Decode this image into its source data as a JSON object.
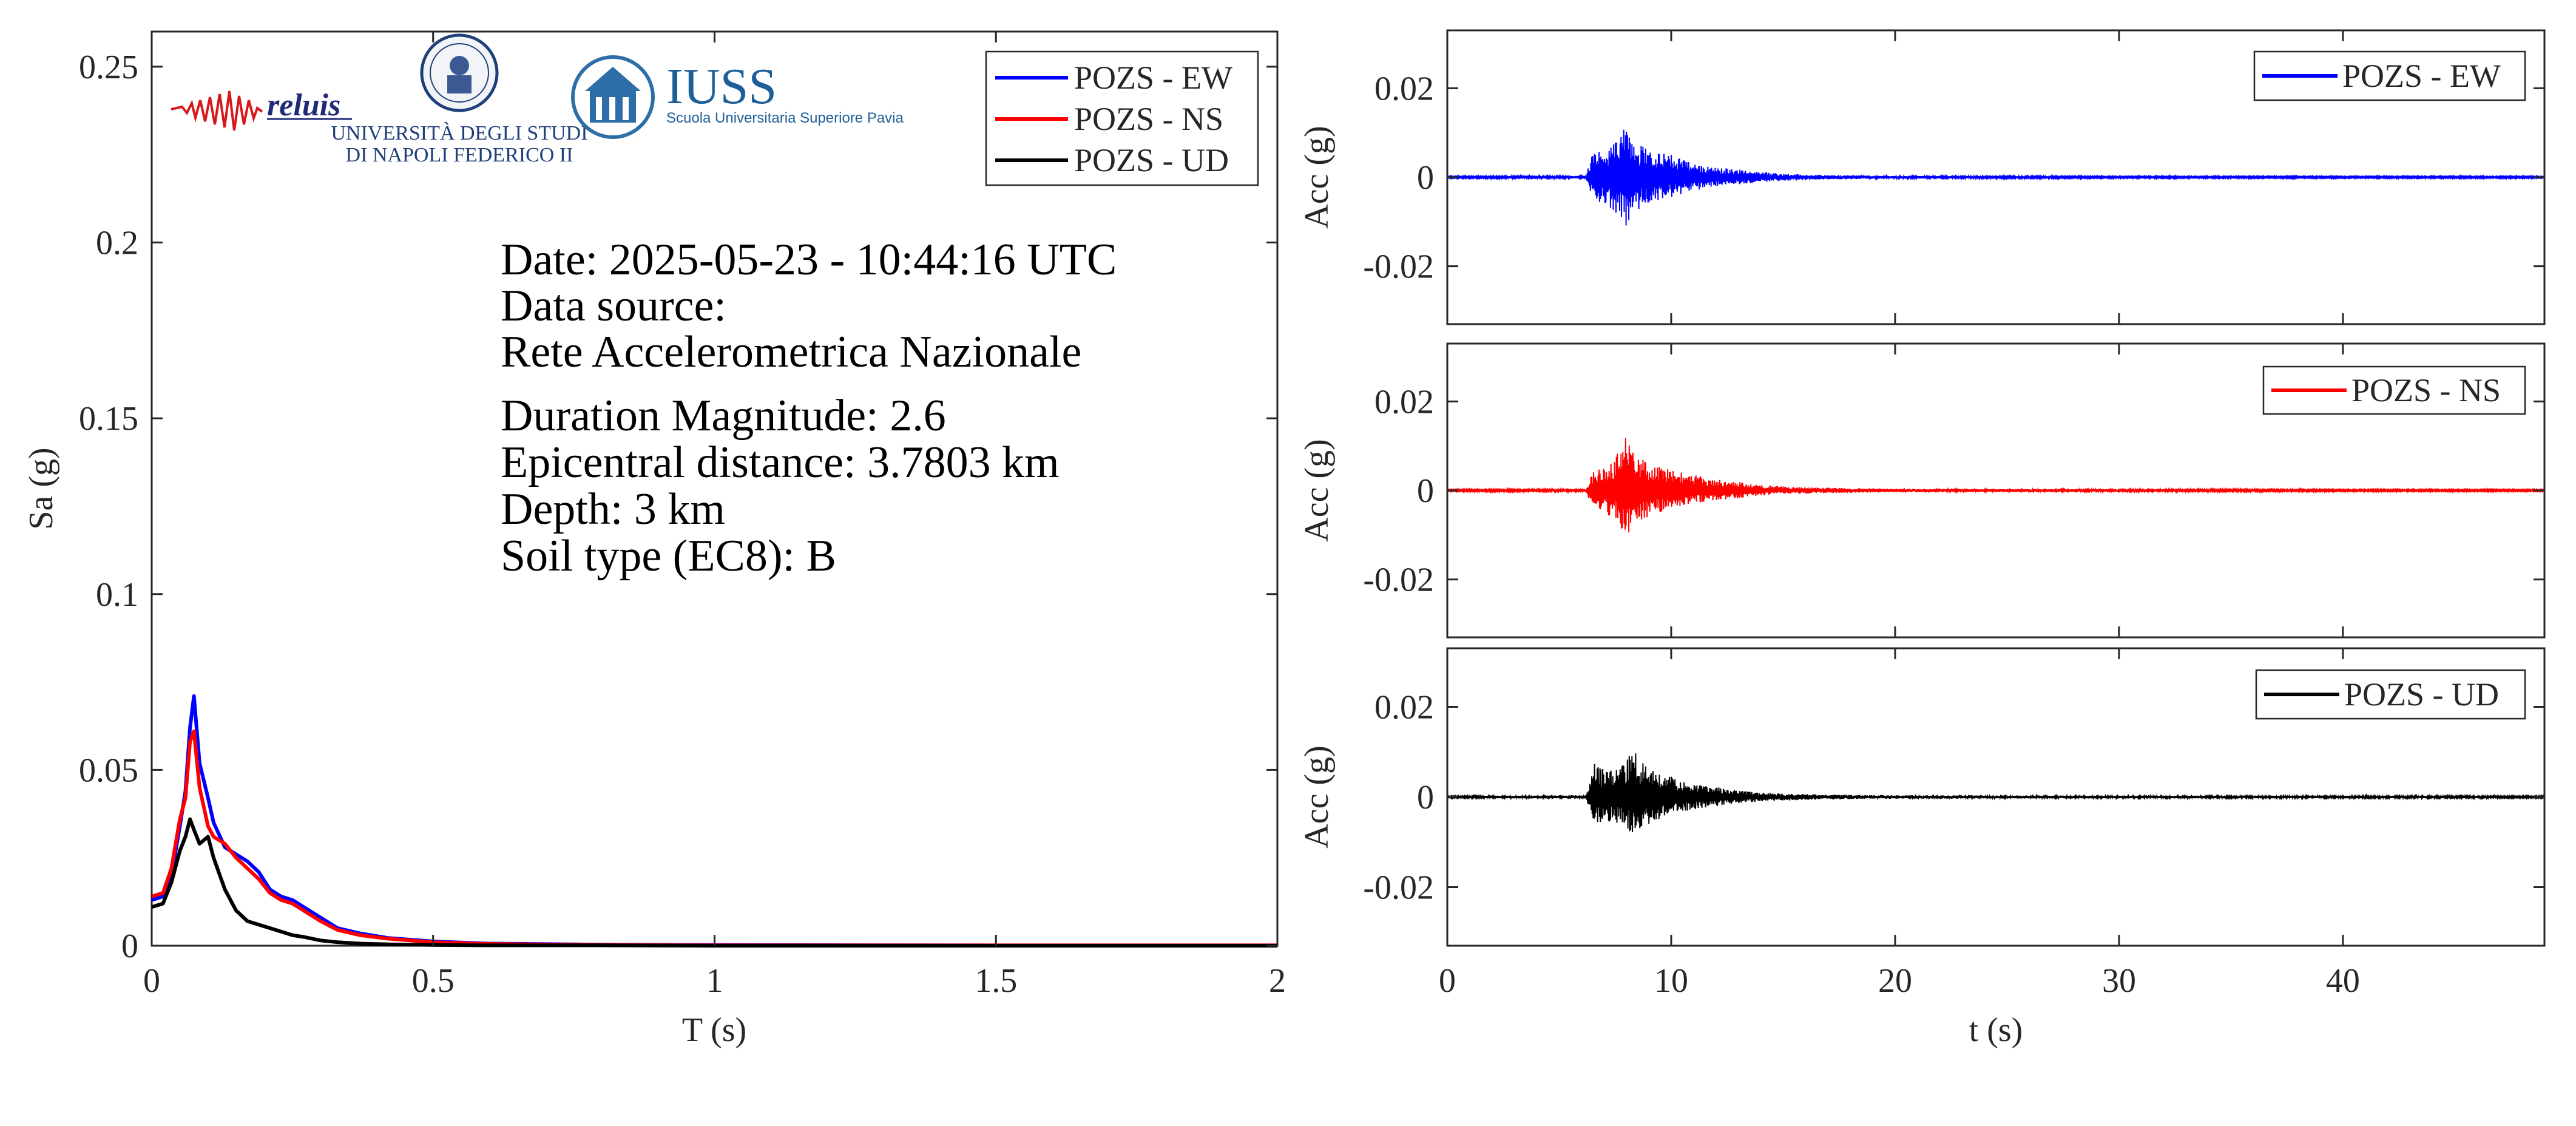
{
  "logos": {
    "reluis": "reluis",
    "unina_line1": "UNIVERSITÀ DEGLI STUDI",
    "unina_line2": "DI NAPOLI FEDERICO II",
    "iuss_title": "IUSS",
    "iuss_subtitle": "Scuola Universitaria Superiore Pavia"
  },
  "info": {
    "date": "Date: 2025-05-23 - 10:44:16 UTC",
    "source_label": "Data source:",
    "source_value": "Rete Accelerometrica Nazionale",
    "magnitude": "Duration Magnitude: 2.6",
    "distance": "Epicentral distance: 3.7803 km",
    "depth": "Depth: 3 km",
    "soil": "Soil type (EC8): B"
  },
  "colors": {
    "ew": "#0000ff",
    "ns": "#ff0000",
    "ud": "#000000",
    "axis": "#262626"
  },
  "chart_data": [
    {
      "type": "line",
      "xlabel": "T (s)",
      "ylabel": "Sa (g)",
      "xlim": [
        0,
        2
      ],
      "ylim": [
        0,
        0.26
      ],
      "xticks": [
        0,
        0.5,
        1,
        1.5,
        2
      ],
      "xtick_labels": [
        "0",
        "0.5",
        "1",
        "1.5",
        "2"
      ],
      "yticks": [
        0,
        0.05,
        0.1,
        0.15,
        0.2,
        0.25
      ],
      "ytick_labels": [
        "0",
        "0.05",
        "0.1",
        "0.15",
        "0.2",
        "0.25"
      ],
      "legend": "top-right",
      "series": [
        {
          "name": "POZS - EW",
          "color": "#0000ff",
          "x": [
            0,
            0.02,
            0.035,
            0.05,
            0.06,
            0.068,
            0.075,
            0.085,
            0.1,
            0.11,
            0.13,
            0.15,
            0.17,
            0.19,
            0.21,
            0.23,
            0.25,
            0.27,
            0.3,
            0.33,
            0.37,
            0.42,
            0.5,
            0.6,
            0.8,
            1.0,
            1.5,
            2.0
          ],
          "y": [
            0.013,
            0.014,
            0.02,
            0.034,
            0.044,
            0.062,
            0.071,
            0.052,
            0.042,
            0.035,
            0.028,
            0.026,
            0.024,
            0.021,
            0.016,
            0.014,
            0.013,
            0.011,
            0.008,
            0.005,
            0.0035,
            0.0022,
            0.0012,
            0.0006,
            0.0003,
            0.0002,
            0.0001,
            0.0001
          ]
        },
        {
          "name": "POZS - NS",
          "color": "#ff0000",
          "x": [
            0,
            0.02,
            0.035,
            0.05,
            0.06,
            0.068,
            0.075,
            0.085,
            0.1,
            0.11,
            0.13,
            0.15,
            0.17,
            0.19,
            0.21,
            0.23,
            0.25,
            0.27,
            0.3,
            0.33,
            0.37,
            0.42,
            0.5,
            0.6,
            0.8,
            1.0,
            1.5,
            2.0
          ],
          "y": [
            0.014,
            0.015,
            0.022,
            0.036,
            0.042,
            0.058,
            0.061,
            0.045,
            0.034,
            0.031,
            0.029,
            0.025,
            0.022,
            0.019,
            0.015,
            0.013,
            0.012,
            0.01,
            0.007,
            0.0045,
            0.003,
            0.002,
            0.001,
            0.0005,
            0.0002,
            0.0001,
            0.0001,
            0.0001
          ]
        },
        {
          "name": "POZS - UD",
          "color": "#000000",
          "x": [
            0,
            0.02,
            0.035,
            0.05,
            0.06,
            0.068,
            0.075,
            0.085,
            0.1,
            0.11,
            0.13,
            0.15,
            0.17,
            0.19,
            0.21,
            0.23,
            0.25,
            0.27,
            0.3,
            0.33,
            0.37,
            0.42,
            0.5,
            0.6,
            0.8,
            1.0,
            1.5,
            2.0
          ],
          "y": [
            0.011,
            0.012,
            0.018,
            0.027,
            0.031,
            0.036,
            0.033,
            0.029,
            0.031,
            0.025,
            0.016,
            0.01,
            0.007,
            0.006,
            0.005,
            0.004,
            0.003,
            0.0025,
            0.0015,
            0.001,
            0.0006,
            0.0004,
            0.0002,
            0.0001,
            0.0001,
            0.0,
            0.0,
            0.0
          ]
        }
      ]
    },
    {
      "type": "line",
      "xlabel": "",
      "ylabel": "Acc (g)",
      "xlim": [
        0,
        49
      ],
      "ylim": [
        -0.033,
        0.033
      ],
      "xticks": [
        0,
        10,
        20,
        30,
        40
      ],
      "yticks": [
        -0.02,
        0,
        0.02
      ],
      "ytick_labels": [
        "-0.02",
        "0",
        "0.02"
      ],
      "legend": "top-right",
      "series": [
        {
          "name": "POZS - EW",
          "color": "#0000ff",
          "x": [
            0,
            6.2,
            6.5,
            7.0,
            7.5,
            7.8,
            8.0,
            8.2,
            8.5,
            9.0,
            9.5,
            10.0,
            11.0,
            12.0,
            13.0,
            14.0,
            15.0,
            17.0,
            20.0,
            30.0,
            40.0,
            49.0
          ],
          "y": [
            0.0002,
            0.0003,
            0.006,
            0.0065,
            0.008,
            0.0105,
            0.0125,
            0.009,
            0.0075,
            0.007,
            0.0055,
            0.005,
            0.0032,
            0.0022,
            0.0018,
            0.0012,
            0.0008,
            0.0005,
            0.0003,
            0.0002,
            0.0002,
            0.0002
          ],
          "y_min": [
            -0.0002,
            -0.0003,
            -0.0055,
            -0.006,
            -0.0085,
            -0.0095,
            -0.0115,
            -0.0095,
            -0.0075,
            -0.0065,
            -0.005,
            -0.0045,
            -0.003,
            -0.002,
            -0.0016,
            -0.0011,
            -0.0008,
            -0.0005,
            -0.0003,
            -0.0002,
            -0.0002,
            -0.0002
          ]
        }
      ]
    },
    {
      "type": "line",
      "xlabel": "",
      "ylabel": "Acc (g)",
      "xlim": [
        0,
        49
      ],
      "ylim": [
        -0.033,
        0.033
      ],
      "xticks": [
        0,
        10,
        20,
        30,
        40
      ],
      "yticks": [
        -0.02,
        0,
        0.02
      ],
      "ytick_labels": [
        "-0.02",
        "0",
        "0.02"
      ],
      "legend": "top-right",
      "series": [
        {
          "name": "POZS - NS",
          "color": "#ff0000",
          "x": [
            0,
            6.2,
            6.5,
            7.0,
            7.5,
            7.8,
            8.0,
            8.2,
            8.5,
            9.0,
            9.5,
            10.0,
            11.0,
            12.0,
            13.0,
            14.0,
            15.0,
            17.0,
            20.0,
            30.0,
            40.0,
            49.0
          ],
          "y": [
            0.0002,
            0.0003,
            0.0045,
            0.005,
            0.0075,
            0.0105,
            0.0138,
            0.0095,
            0.0075,
            0.0065,
            0.0055,
            0.0045,
            0.0035,
            0.0025,
            0.002,
            0.0013,
            0.0009,
            0.0006,
            0.0004,
            0.0003,
            0.0002,
            0.0002
          ],
          "y_min": [
            -0.0002,
            -0.0003,
            -0.0045,
            -0.005,
            -0.0065,
            -0.009,
            -0.0105,
            -0.009,
            -0.007,
            -0.006,
            -0.005,
            -0.0045,
            -0.003,
            -0.0022,
            -0.0018,
            -0.0012,
            -0.0008,
            -0.0006,
            -0.0004,
            -0.0003,
            -0.0002,
            -0.0002
          ]
        }
      ]
    },
    {
      "type": "line",
      "xlabel": "t (s)",
      "ylabel": "Acc (g)",
      "xlim": [
        0,
        49
      ],
      "ylim": [
        -0.033,
        0.033
      ],
      "xticks": [
        0,
        10,
        20,
        30,
        40
      ],
      "xtick_labels": [
        "0",
        "10",
        "20",
        "30",
        "40"
      ],
      "yticks": [
        -0.02,
        0,
        0.02
      ],
      "ytick_labels": [
        "-0.02",
        "0",
        "0.02"
      ],
      "legend": "top-right",
      "series": [
        {
          "name": "POZS - UD",
          "color": "#000000",
          "x": [
            0,
            6.2,
            6.5,
            7.0,
            7.5,
            7.8,
            8.0,
            8.3,
            8.6,
            9.0,
            9.5,
            10.0,
            11.0,
            12.0,
            13.0,
            14.0,
            15.0,
            17.0,
            20.0,
            30.0,
            40.0,
            49.0
          ],
          "y": [
            0.0002,
            0.0004,
            0.0075,
            0.0065,
            0.006,
            0.0075,
            0.0085,
            0.011,
            0.008,
            0.0065,
            0.005,
            0.0045,
            0.003,
            0.0022,
            0.0015,
            0.001,
            0.0008,
            0.0005,
            0.0004,
            0.0003,
            0.0003,
            0.0002
          ],
          "y_min": [
            -0.0002,
            -0.0004,
            -0.0065,
            -0.006,
            -0.0055,
            -0.007,
            -0.0075,
            -0.0085,
            -0.007,
            -0.006,
            -0.0048,
            -0.004,
            -0.0028,
            -0.002,
            -0.0014,
            -0.001,
            -0.0008,
            -0.0005,
            -0.0004,
            -0.0003,
            -0.0003,
            -0.0002
          ]
        }
      ]
    }
  ]
}
